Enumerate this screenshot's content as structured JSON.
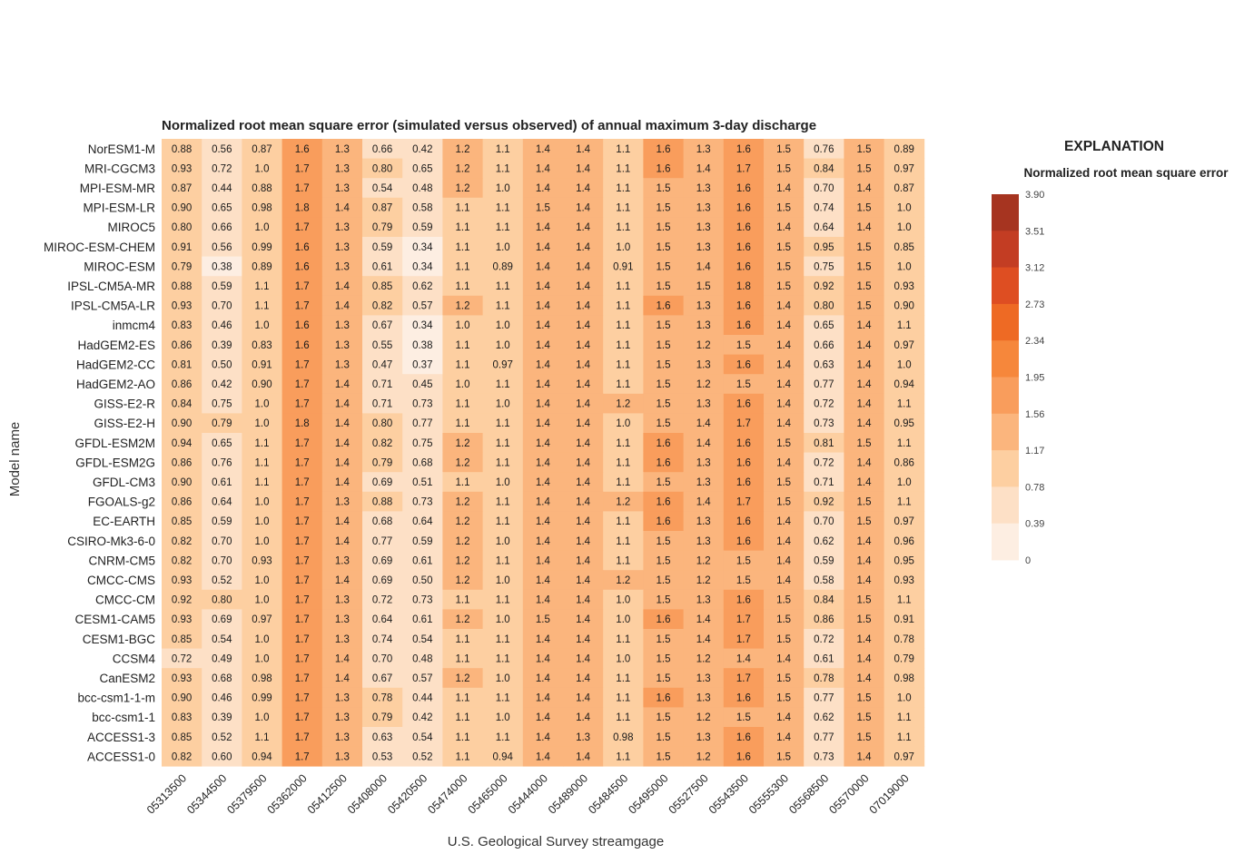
{
  "chart_data": {
    "type": "heatmap",
    "title": "Normalized root mean square error (simulated versus observed) of annual maximum 3-day discharge",
    "xlabel": "U.S. Geological Survey streamgage",
    "ylabel": "Model name",
    "columns": [
      "05313500",
      "05344500",
      "05379500",
      "05362000",
      "05412500",
      "05408000",
      "05420500",
      "05474000",
      "05465000",
      "05444000",
      "05489000",
      "05484500",
      "05495000",
      "05527500",
      "05543500",
      "05555300",
      "05568500",
      "05570000",
      "07019000"
    ],
    "rows": [
      "NorESM1-M",
      "MRI-CGCM3",
      "MPI-ESM-MR",
      "MPI-ESM-LR",
      "MIROC5",
      "MIROC-ESM-CHEM",
      "MIROC-ESM",
      "IPSL-CM5A-MR",
      "IPSL-CM5A-LR",
      "inmcm4",
      "HadGEM2-ES",
      "HadGEM2-CC",
      "HadGEM2-AO",
      "GISS-E2-R",
      "GISS-E2-H",
      "GFDL-ESM2M",
      "GFDL-ESM2G",
      "GFDL-CM3",
      "FGOALS-g2",
      "EC-EARTH",
      "CSIRO-Mk3-6-0",
      "CNRM-CM5",
      "CMCC-CMS",
      "CMCC-CM",
      "CESM1-CAM5",
      "CESM1-BGC",
      "CCSM4",
      "CanESM2",
      "bcc-csm1-1-m",
      "bcc-csm1-1",
      "ACCESS1-3",
      "ACCESS1-0"
    ],
    "values": [
      [
        "0.88",
        "0.56",
        "0.87",
        "1.6",
        "1.3",
        "0.66",
        "0.42",
        "1.2",
        "1.1",
        "1.4",
        "1.4",
        "1.1",
        "1.6",
        "1.3",
        "1.6",
        "1.5",
        "0.76",
        "1.5",
        "0.89"
      ],
      [
        "0.93",
        "0.72",
        "1.0",
        "1.7",
        "1.3",
        "0.80",
        "0.65",
        "1.2",
        "1.1",
        "1.4",
        "1.4",
        "1.1",
        "1.6",
        "1.4",
        "1.7",
        "1.5",
        "0.84",
        "1.5",
        "0.97"
      ],
      [
        "0.87",
        "0.44",
        "0.88",
        "1.7",
        "1.3",
        "0.54",
        "0.48",
        "1.2",
        "1.0",
        "1.4",
        "1.4",
        "1.1",
        "1.5",
        "1.3",
        "1.6",
        "1.4",
        "0.70",
        "1.4",
        "0.87"
      ],
      [
        "0.90",
        "0.65",
        "0.98",
        "1.8",
        "1.4",
        "0.87",
        "0.58",
        "1.1",
        "1.1",
        "1.5",
        "1.4",
        "1.1",
        "1.5",
        "1.3",
        "1.6",
        "1.5",
        "0.74",
        "1.5",
        "1.0"
      ],
      [
        "0.80",
        "0.66",
        "1.0",
        "1.7",
        "1.3",
        "0.79",
        "0.59",
        "1.1",
        "1.1",
        "1.4",
        "1.4",
        "1.1",
        "1.5",
        "1.3",
        "1.6",
        "1.4",
        "0.64",
        "1.4",
        "1.0"
      ],
      [
        "0.91",
        "0.56",
        "0.99",
        "1.6",
        "1.3",
        "0.59",
        "0.34",
        "1.1",
        "1.0",
        "1.4",
        "1.4",
        "1.0",
        "1.5",
        "1.3",
        "1.6",
        "1.5",
        "0.95",
        "1.5",
        "0.85"
      ],
      [
        "0.79",
        "0.38",
        "0.89",
        "1.6",
        "1.3",
        "0.61",
        "0.34",
        "1.1",
        "0.89",
        "1.4",
        "1.4",
        "0.91",
        "1.5",
        "1.4",
        "1.6",
        "1.5",
        "0.75",
        "1.5",
        "1.0"
      ],
      [
        "0.88",
        "0.59",
        "1.1",
        "1.7",
        "1.4",
        "0.85",
        "0.62",
        "1.1",
        "1.1",
        "1.4",
        "1.4",
        "1.1",
        "1.5",
        "1.5",
        "1.8",
        "1.5",
        "0.92",
        "1.5",
        "0.93"
      ],
      [
        "0.93",
        "0.70",
        "1.1",
        "1.7",
        "1.4",
        "0.82",
        "0.57",
        "1.2",
        "1.1",
        "1.4",
        "1.4",
        "1.1",
        "1.6",
        "1.3",
        "1.6",
        "1.4",
        "0.80",
        "1.5",
        "0.90"
      ],
      [
        "0.83",
        "0.46",
        "1.0",
        "1.6",
        "1.3",
        "0.67",
        "0.34",
        "1.0",
        "1.0",
        "1.4",
        "1.4",
        "1.1",
        "1.5",
        "1.3",
        "1.6",
        "1.4",
        "0.65",
        "1.4",
        "1.1"
      ],
      [
        "0.86",
        "0.39",
        "0.83",
        "1.6",
        "1.3",
        "0.55",
        "0.38",
        "1.1",
        "1.0",
        "1.4",
        "1.4",
        "1.1",
        "1.5",
        "1.2",
        "1.5",
        "1.4",
        "0.66",
        "1.4",
        "0.97"
      ],
      [
        "0.81",
        "0.50",
        "0.91",
        "1.7",
        "1.3",
        "0.47",
        "0.37",
        "1.1",
        "0.97",
        "1.4",
        "1.4",
        "1.1",
        "1.5",
        "1.3",
        "1.6",
        "1.4",
        "0.63",
        "1.4",
        "1.0"
      ],
      [
        "0.86",
        "0.42",
        "0.90",
        "1.7",
        "1.4",
        "0.71",
        "0.45",
        "1.0",
        "1.1",
        "1.4",
        "1.4",
        "1.1",
        "1.5",
        "1.2",
        "1.5",
        "1.4",
        "0.77",
        "1.4",
        "0.94"
      ],
      [
        "0.84",
        "0.75",
        "1.0",
        "1.7",
        "1.4",
        "0.71",
        "0.73",
        "1.1",
        "1.0",
        "1.4",
        "1.4",
        "1.2",
        "1.5",
        "1.3",
        "1.6",
        "1.4",
        "0.72",
        "1.4",
        "1.1"
      ],
      [
        "0.90",
        "0.79",
        "1.0",
        "1.8",
        "1.4",
        "0.80",
        "0.77",
        "1.1",
        "1.1",
        "1.4",
        "1.4",
        "1.0",
        "1.5",
        "1.4",
        "1.7",
        "1.4",
        "0.73",
        "1.4",
        "0.95"
      ],
      [
        "0.94",
        "0.65",
        "1.1",
        "1.7",
        "1.4",
        "0.82",
        "0.75",
        "1.2",
        "1.1",
        "1.4",
        "1.4",
        "1.1",
        "1.6",
        "1.4",
        "1.6",
        "1.5",
        "0.81",
        "1.5",
        "1.1"
      ],
      [
        "0.86",
        "0.76",
        "1.1",
        "1.7",
        "1.4",
        "0.79",
        "0.68",
        "1.2",
        "1.1",
        "1.4",
        "1.4",
        "1.1",
        "1.6",
        "1.3",
        "1.6",
        "1.4",
        "0.72",
        "1.4",
        "0.86"
      ],
      [
        "0.90",
        "0.61",
        "1.1",
        "1.7",
        "1.4",
        "0.69",
        "0.51",
        "1.1",
        "1.0",
        "1.4",
        "1.4",
        "1.1",
        "1.5",
        "1.3",
        "1.6",
        "1.5",
        "0.71",
        "1.4",
        "1.0"
      ],
      [
        "0.86",
        "0.64",
        "1.0",
        "1.7",
        "1.3",
        "0.88",
        "0.73",
        "1.2",
        "1.1",
        "1.4",
        "1.4",
        "1.2",
        "1.6",
        "1.4",
        "1.7",
        "1.5",
        "0.92",
        "1.5",
        "1.1"
      ],
      [
        "0.85",
        "0.59",
        "1.0",
        "1.7",
        "1.4",
        "0.68",
        "0.64",
        "1.2",
        "1.1",
        "1.4",
        "1.4",
        "1.1",
        "1.6",
        "1.3",
        "1.6",
        "1.4",
        "0.70",
        "1.5",
        "0.97"
      ],
      [
        "0.82",
        "0.70",
        "1.0",
        "1.7",
        "1.4",
        "0.77",
        "0.59",
        "1.2",
        "1.0",
        "1.4",
        "1.4",
        "1.1",
        "1.5",
        "1.3",
        "1.6",
        "1.4",
        "0.62",
        "1.4",
        "0.96"
      ],
      [
        "0.82",
        "0.70",
        "0.93",
        "1.7",
        "1.3",
        "0.69",
        "0.61",
        "1.2",
        "1.1",
        "1.4",
        "1.4",
        "1.1",
        "1.5",
        "1.2",
        "1.5",
        "1.4",
        "0.59",
        "1.4",
        "0.95"
      ],
      [
        "0.93",
        "0.52",
        "1.0",
        "1.7",
        "1.4",
        "0.69",
        "0.50",
        "1.2",
        "1.0",
        "1.4",
        "1.4",
        "1.2",
        "1.5",
        "1.2",
        "1.5",
        "1.4",
        "0.58",
        "1.4",
        "0.93"
      ],
      [
        "0.92",
        "0.80",
        "1.0",
        "1.7",
        "1.3",
        "0.72",
        "0.73",
        "1.1",
        "1.1",
        "1.4",
        "1.4",
        "1.0",
        "1.5",
        "1.3",
        "1.6",
        "1.5",
        "0.84",
        "1.5",
        "1.1"
      ],
      [
        "0.93",
        "0.69",
        "0.97",
        "1.7",
        "1.3",
        "0.64",
        "0.61",
        "1.2",
        "1.0",
        "1.5",
        "1.4",
        "1.0",
        "1.6",
        "1.4",
        "1.7",
        "1.5",
        "0.86",
        "1.5",
        "0.91"
      ],
      [
        "0.85",
        "0.54",
        "1.0",
        "1.7",
        "1.3",
        "0.74",
        "0.54",
        "1.1",
        "1.1",
        "1.4",
        "1.4",
        "1.1",
        "1.5",
        "1.4",
        "1.7",
        "1.5",
        "0.72",
        "1.4",
        "0.78"
      ],
      [
        "0.72",
        "0.49",
        "1.0",
        "1.7",
        "1.4",
        "0.70",
        "0.48",
        "1.1",
        "1.1",
        "1.4",
        "1.4",
        "1.0",
        "1.5",
        "1.2",
        "1.4",
        "1.4",
        "0.61",
        "1.4",
        "0.79"
      ],
      [
        "0.93",
        "0.68",
        "0.98",
        "1.7",
        "1.4",
        "0.67",
        "0.57",
        "1.2",
        "1.0",
        "1.4",
        "1.4",
        "1.1",
        "1.5",
        "1.3",
        "1.7",
        "1.5",
        "0.78",
        "1.4",
        "0.98"
      ],
      [
        "0.90",
        "0.46",
        "0.99",
        "1.7",
        "1.3",
        "0.78",
        "0.44",
        "1.1",
        "1.1",
        "1.4",
        "1.4",
        "1.1",
        "1.6",
        "1.3",
        "1.6",
        "1.5",
        "0.77",
        "1.5",
        "1.0"
      ],
      [
        "0.83",
        "0.39",
        "1.0",
        "1.7",
        "1.3",
        "0.79",
        "0.42",
        "1.1",
        "1.0",
        "1.4",
        "1.4",
        "1.1",
        "1.5",
        "1.2",
        "1.5",
        "1.4",
        "0.62",
        "1.5",
        "1.1"
      ],
      [
        "0.85",
        "0.52",
        "1.1",
        "1.7",
        "1.3",
        "0.63",
        "0.54",
        "1.1",
        "1.1",
        "1.4",
        "1.3",
        "0.98",
        "1.5",
        "1.3",
        "1.6",
        "1.4",
        "0.77",
        "1.5",
        "1.1"
      ],
      [
        "0.82",
        "0.60",
        "0.94",
        "1.7",
        "1.3",
        "0.53",
        "0.52",
        "1.1",
        "0.94",
        "1.4",
        "1.4",
        "1.1",
        "1.5",
        "1.2",
        "1.6",
        "1.5",
        "0.73",
        "1.4",
        "0.97"
      ]
    ],
    "legend": {
      "heading": "EXPLANATION",
      "subtitle": "Normalized root mean square error",
      "ticks": [
        "3.90",
        "3.51",
        "3.12",
        "2.73",
        "2.34",
        "1.95",
        "1.56",
        "1.17",
        "0.78",
        "0.39",
        "0"
      ],
      "bin_edges": [
        0,
        0.39,
        0.78,
        1.17,
        1.56,
        1.95,
        2.34,
        2.73,
        3.12,
        3.51,
        3.9
      ],
      "colors": [
        "#fdeee2",
        "#fde0c6",
        "#fdcfa1",
        "#fbb57d",
        "#f99d5c",
        "#f6873b",
        "#ee6a24",
        "#de4e22",
        "#c33d23",
        "#a63420"
      ]
    }
  }
}
